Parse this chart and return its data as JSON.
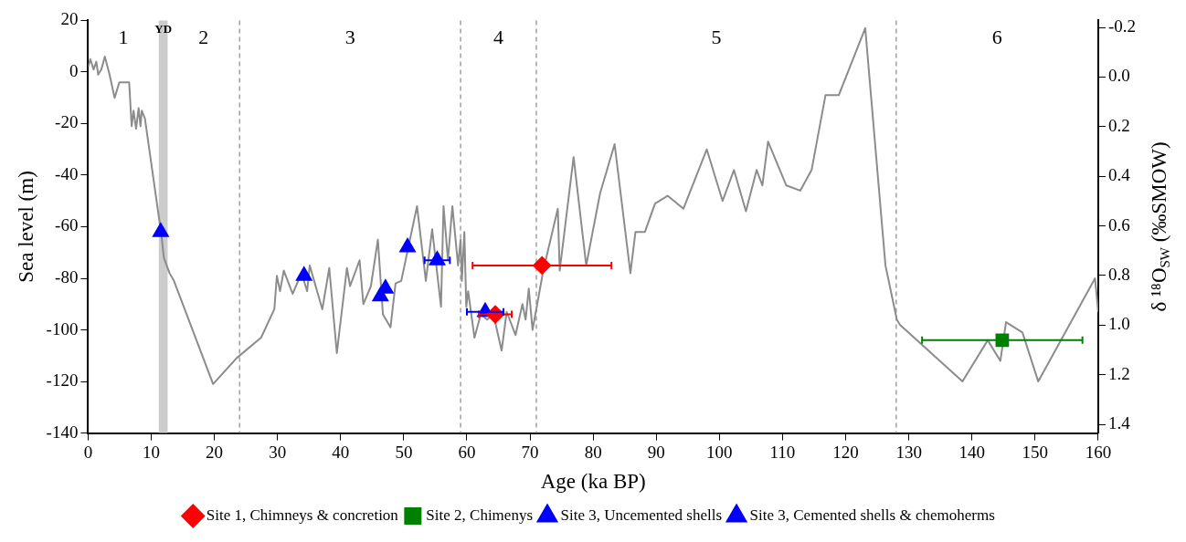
{
  "chart_data": {
    "type": "line",
    "xlabel": "Age (ka BP)",
    "ylabel": "Sea level (m)",
    "y2label": "δ ¹⁸O$_{SW}$ (‰SMOW)",
    "xlim": [
      0,
      160
    ],
    "xticks": [
      0,
      10,
      20,
      30,
      40,
      50,
      60,
      70,
      80,
      90,
      100,
      110,
      120,
      130,
      140,
      150,
      160
    ],
    "ylim": [
      -140,
      20
    ],
    "yticks": [
      -140,
      -120,
      -100,
      -80,
      -60,
      -40,
      -20,
      0,
      20
    ],
    "y2lim": [
      1.435,
      -0.228
    ],
    "y2ticks": [
      -0.2,
      {
        "value": 0,
        "label": "0.0"
      },
      0.2,
      0.4,
      0.6,
      0.8,
      {
        "value": 1,
        "label": "1.0"
      },
      1.2,
      1.4
    ],
    "grid": false,
    "legend": "bottom",
    "series": [
      {
        "color": "#8c8c8c",
        "marker": "none",
        "line_style": "solid",
        "x": [
          0,
          0.35,
          0.87,
          1.3,
          1.6,
          2.1,
          2.65,
          3.4,
          4.2,
          4.7,
          4.95,
          6.5,
          6.9,
          7.2,
          7.6,
          8.0,
          8.3,
          8.5,
          9.0,
          11.6,
          12.0,
          12.9,
          13.6,
          19.8,
          23.5,
          27.4,
          29.5,
          29.9,
          30.4,
          31.0,
          32.4,
          33.8,
          34.7,
          35.1,
          37.1,
          38.2,
          39.4,
          41.0,
          41.5,
          43.0,
          43.6,
          44.8,
          45.9,
          46.7,
          47.9,
          48.7,
          49.6,
          52.1,
          53.5,
          54.5,
          55.9,
          56.3,
          57.0,
          57.7,
          58.6,
          59.0,
          59.2,
          59.6,
          59.9,
          60.2,
          61.2,
          62.2,
          63.2,
          64.2,
          65.5,
          66.3,
          67.7,
          68.8,
          69.3,
          69.8,
          70.4,
          72.1,
          74.4,
          74.7,
          76.9,
          78.9,
          81.1,
          83.4,
          85.9,
          86.7,
          88.2,
          89.8,
          91.8,
          94.3,
          98.0,
          100.5,
          102.3,
          104.2,
          105.9,
          106.8,
          107.7,
          110.6,
          112.8,
          114.6,
          116.8,
          118.9,
          123.1,
          126.3,
          128.1,
          128.6,
          138.5,
          142.5,
          144.5,
          145.4,
          148.0,
          150.5,
          159.5,
          160
        ],
        "values": [
          2,
          5,
          1,
          4,
          -1,
          1,
          6,
          -1,
          -10,
          -6,
          -4,
          -4,
          -21,
          -15,
          -22,
          -14,
          -21,
          -15,
          -18,
          -63,
          -72,
          -78,
          -81,
          -121,
          -111,
          -103,
          -92,
          -79,
          -85,
          -77,
          -86,
          -78,
          -85,
          -75,
          -92,
          -76,
          -109,
          -76,
          -83,
          -73,
          -90,
          -83,
          -65,
          -94,
          -99,
          -82,
          -81,
          -52,
          -81,
          -61,
          -91,
          -52,
          -73,
          -52,
          -75,
          -65,
          -81,
          -62,
          -91,
          -85,
          -103,
          -94,
          -96,
          -94,
          -108,
          -93,
          -102,
          -90,
          -96,
          -84,
          -100,
          -77,
          -53,
          -77,
          -33,
          -75,
          -47,
          -28,
          -78,
          -62,
          -62,
          -51,
          -48,
          -53,
          -30,
          -50,
          -38,
          -54,
          -38,
          -44,
          -27,
          -44,
          -46,
          -38,
          -9,
          -9,
          17,
          -75,
          -96,
          -98,
          -120,
          -104,
          -112,
          -97,
          -101,
          -120,
          -80,
          -93
        ]
      },
      {
        "type": "scatter",
        "name": "Site 1, Chimneys & concretion",
        "color": "#ff0000",
        "marker": "diamond",
        "x": [
          71.9,
          64.5
        ],
        "values": [
          -75,
          -94
        ],
        "xerrors": [
          11,
          2.6
        ]
      },
      {
        "type": "scatter",
        "name": "Site 2, Chimenys",
        "color": "#008000",
        "marker": "square",
        "x": [
          144.8
        ],
        "values": [
          -104
        ],
        "xerrors": [
          12.7
        ]
      },
      {
        "type": "scatter",
        "name": "Site 3, Uncemented shells",
        "color": "#0000ff",
        "marker": "triangle",
        "x": [
          11.5
        ],
        "values": [
          -62
        ]
      },
      {
        "type": "scatter",
        "name": "Site 3, Cemented shells & chemoherms",
        "color": "#0000ff",
        "marker": "triangle",
        "x": [
          34.2,
          46.3,
          47.1,
          50.6,
          55.3,
          62.9
        ],
        "values": [
          -79,
          -87,
          -84,
          -68,
          -73,
          -93
        ],
        "xerrors": [
          null,
          null,
          null,
          null,
          2,
          2.9
        ]
      }
    ],
    "ref_lines": [
      {
        "axis": "x",
        "value": 24,
        "color": "#a0a0a0",
        "line_style": "dashed"
      },
      {
        "axis": "x",
        "value": 59,
        "color": "#a0a0a0",
        "line_style": "dashed"
      },
      {
        "axis": "x",
        "value": 71,
        "color": "#a0a0a0",
        "line_style": "dashed"
      },
      {
        "axis": "x",
        "value": 128,
        "color": "#a0a0a0",
        "line_style": "dashed"
      }
    ],
    "bands": [
      {
        "axis": "x",
        "from": 11.2,
        "to": 12.6,
        "label": "YD",
        "color": "#cccccc"
      }
    ],
    "annotations": [
      "1",
      "2",
      "3",
      "4",
      "5",
      "6"
    ]
  }
}
